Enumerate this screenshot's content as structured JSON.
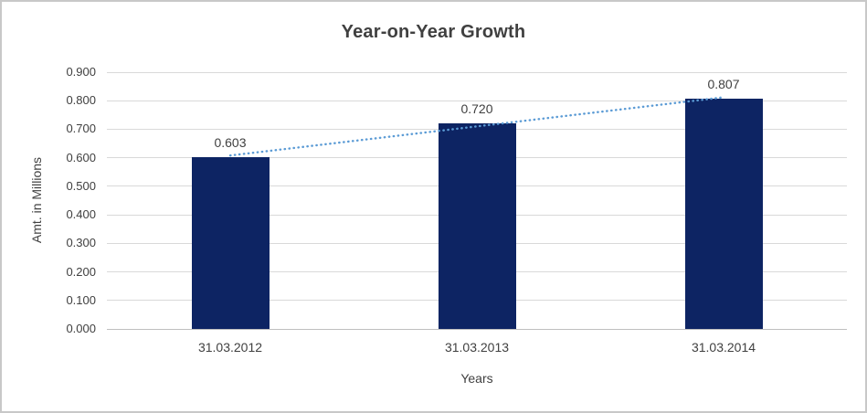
{
  "chart_data": {
    "type": "bar",
    "title": "Year-on-Year Growth",
    "xlabel": "Years",
    "ylabel": "Amt. in Millions",
    "categories": [
      "31.03.2012",
      "31.03.2013",
      "31.03.2014"
    ],
    "values": [
      0.603,
      0.72,
      0.807
    ],
    "data_labels": [
      "0.603",
      "0.720",
      "0.807"
    ],
    "ylim": [
      0.0,
      0.9
    ],
    "ytick_step": 0.1,
    "ytick_labels": [
      "0.900",
      "0.800",
      "0.700",
      "0.600",
      "0.500",
      "0.400",
      "0.300",
      "0.200",
      "0.100",
      "0.000"
    ],
    "grid": true,
    "legend": "none",
    "trendline": {
      "style": "dotted",
      "start_value": 0.608,
      "end_value": 0.812
    },
    "colors": {
      "bar": "#0d2463",
      "trendline": "#5b9bd5",
      "text": "#404040",
      "gridline": "#d9d9d9",
      "axis_line": "#bfbfbf",
      "border": "#c8c8c8",
      "background": "#ffffff"
    }
  }
}
